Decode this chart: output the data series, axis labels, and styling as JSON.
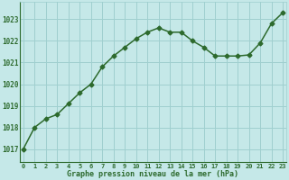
{
  "x": [
    0,
    1,
    2,
    3,
    4,
    5,
    6,
    7,
    8,
    9,
    10,
    11,
    12,
    13,
    14,
    15,
    16,
    17,
    18,
    19,
    20,
    21,
    22,
    23
  ],
  "y": [
    1017.0,
    1018.0,
    1018.4,
    1018.6,
    1019.1,
    1019.6,
    1020.0,
    1020.8,
    1021.3,
    1021.7,
    1022.1,
    1022.4,
    1022.6,
    1022.4,
    1022.4,
    1022.0,
    1021.7,
    1021.3,
    1021.3,
    1021.3,
    1021.35,
    1021.9,
    1022.8,
    1023.3
  ],
  "line_color": "#2d6a2d",
  "marker": "D",
  "marker_size": 2.5,
  "bg_color": "#c5e8e8",
  "grid_color": "#9fcfcf",
  "xlabel": "Graphe pression niveau de la mer (hPa)",
  "tick_color": "#2d6a2d",
  "ylabel_ticks": [
    1017,
    1018,
    1019,
    1020,
    1021,
    1022,
    1023
  ],
  "ylim": [
    1016.4,
    1023.8
  ],
  "xlim": [
    -0.3,
    23.3
  ]
}
